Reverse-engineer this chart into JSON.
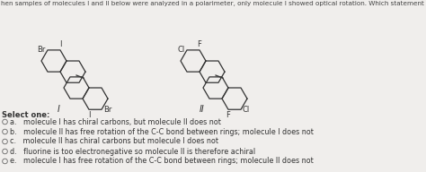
{
  "title": "hen samples of molecules I and II below were analyzed in a polarimeter, only molecule I showed optical rotation. Which statement below offers a reasonable explanation",
  "question_text": "Select one:",
  "options": [
    "a.   molecule I has chiral carbons, but molecule II does not",
    "b.   molecule II has free rotation of the C-C bond between rings; molecule I does not",
    "c.   molecule II has chiral carbons but molecule I does not",
    "d.   fluorine is too electronegative so molecule II is therefore achiral",
    "e.   molecule I has free rotation of the C-C bond between rings; molecule II does not"
  ],
  "mol1_label": "I",
  "mol2_label": "II",
  "mol1_sub1": "Br",
  "mol1_sub2": "Br",
  "mol1_sub3": "I",
  "mol1_sub4": "I",
  "mol2_sub1": "Cl",
  "mol2_sub2": "Cl",
  "mol2_sub3": "F",
  "mol2_sub4": "F",
  "bg_color": "#f0eeec",
  "text_color": "#333333",
  "title_color": "#444444",
  "font_size_title": 5.2,
  "font_size_body": 6.0,
  "font_size_option": 5.8,
  "font_size_mol_label": 7.0,
  "font_size_substituent": 6.0
}
